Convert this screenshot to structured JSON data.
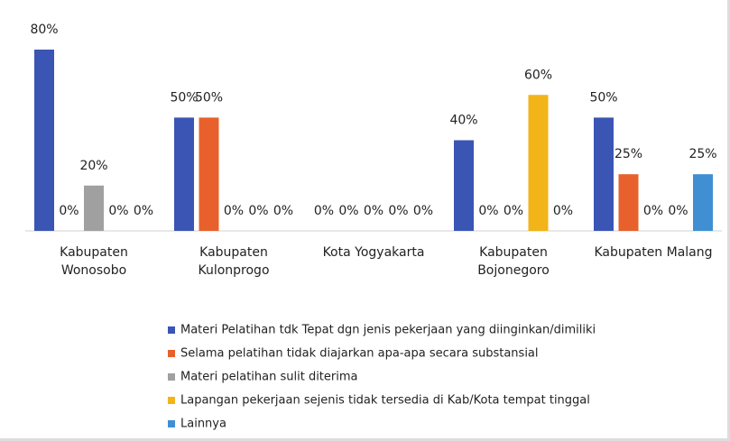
{
  "chart_data": {
    "type": "bar",
    "categories": [
      "Kabupaten Wonosobo",
      "Kabupaten Kulonprogo",
      "Kota Yogyakarta",
      "Kabupaten Bojonegoro",
      "Kabupaten Malang"
    ],
    "series": [
      {
        "name": "Materi Pelatihan tdk Tepat dgn jenis pekerjaan yang diinginkan/dimiliki",
        "color": "#3a55b4",
        "values": [
          80,
          50,
          0,
          40,
          50
        ],
        "value_labels": [
          "80%",
          "50%",
          "0%",
          "40%",
          "50%"
        ]
      },
      {
        "name": "Selama pelatihan tidak diajarkan apa-apa secara substansial",
        "color": "#e8612c",
        "values": [
          0,
          50,
          0,
          0,
          25
        ],
        "value_labels": [
          "0%",
          "50%",
          "0%",
          "0%",
          "25%"
        ]
      },
      {
        "name": "Materi pelatihan sulit diterima",
        "color": "#a0a0a0",
        "values": [
          20,
          0,
          0,
          0,
          0
        ],
        "value_labels": [
          "20%",
          "0%",
          "0%",
          "0%",
          "0%"
        ]
      },
      {
        "name": "Lapangan pekerjaan sejenis tidak tersedia di Kab/Kota tempat tinggal",
        "color": "#f2b418",
        "values": [
          0,
          0,
          0,
          60,
          0
        ],
        "value_labels": [
          "0%",
          "0%",
          "0%",
          "60%",
          "0%"
        ]
      },
      {
        "name": "Lainnya",
        "color": "#3f8fd2",
        "values": [
          0,
          0,
          0,
          0,
          25
        ],
        "value_labels": [
          "0%",
          "0%",
          "0%",
          "0%",
          "25%"
        ]
      }
    ],
    "ylim": [
      0,
      80
    ],
    "legend": "bottom"
  }
}
